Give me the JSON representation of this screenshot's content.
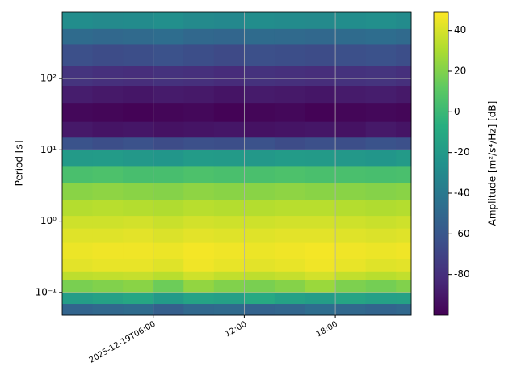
{
  "chart_data": {
    "type": "heatmap",
    "ylabel": "Period [s]",
    "colorbar_label": "Amplitude [m²/s⁴/Hz] [dB]",
    "colormap": "viridis",
    "grid": true,
    "yscale": "log",
    "xlim": [
      "2025-12-19T00:00",
      "2025-12-19T23:00"
    ],
    "xticks": [
      "2025-12-19T06:00",
      {
        "value": "2025-12-19T12:00",
        "label": "12:00"
      },
      {
        "value": "2025-12-19T18:00",
        "label": "18:00"
      }
    ],
    "ylim": [
      0.048,
      850
    ],
    "yticks": [
      {
        "value": 0.1,
        "label": "10⁻¹"
      },
      {
        "value": 1,
        "label": "10⁰"
      },
      {
        "value": 10,
        "label": "10¹"
      },
      {
        "value": 100,
        "label": "10²"
      }
    ],
    "clim": [
      -100,
      49
    ],
    "cticks": [
      -80,
      -60,
      -40,
      -20,
      0,
      20,
      40
    ],
    "x_edges": [
      "2025-12-19T00:00",
      "2025-12-19T02:00",
      "2025-12-19T04:00",
      "2025-12-19T06:00",
      "2025-12-19T08:00",
      "2025-12-19T10:00",
      "2025-12-19T12:00",
      "2025-12-19T14:00",
      "2025-12-19T16:00",
      "2025-12-19T18:00",
      "2025-12-19T20:00",
      "2025-12-19T22:00",
      "2025-12-19T23:00"
    ],
    "y_edges": [
      0.048,
      0.07,
      0.1,
      0.15,
      0.2,
      0.3,
      0.5,
      0.8,
      1.2,
      2,
      3.5,
      6,
      10,
      15,
      25,
      45,
      80,
      150,
      300,
      500,
      850
    ],
    "z": [
      [
        -52,
        -50,
        -48,
        -55,
        -50,
        -49,
        -53,
        -51,
        -47,
        -50,
        -52,
        -50
      ],
      [
        -18,
        -15,
        -12,
        -20,
        -14,
        -16,
        -10,
        -15,
        -18,
        -13,
        -16,
        -15
      ],
      [
        18,
        20,
        22,
        15,
        24,
        20,
        18,
        21,
        26,
        19,
        17,
        20
      ],
      [
        34,
        35,
        36,
        33,
        38,
        35,
        34,
        36,
        39,
        35,
        33,
        35
      ],
      [
        43,
        44,
        44,
        42,
        46,
        44,
        43,
        44,
        46,
        44,
        42,
        43
      ],
      [
        45,
        46,
        46,
        45,
        47,
        46,
        45,
        46,
        47,
        46,
        45,
        46
      ],
      [
        42,
        42,
        43,
        41,
        43,
        42,
        42,
        43,
        43,
        42,
        41,
        42
      ],
      [
        38,
        38,
        39,
        37,
        39,
        38,
        38,
        39,
        39,
        38,
        37,
        38
      ],
      [
        32,
        33,
        32,
        31,
        33,
        32,
        32,
        33,
        33,
        32,
        31,
        32
      ],
      [
        22,
        23,
        22,
        21,
        23,
        22,
        22,
        23,
        22,
        22,
        21,
        22
      ],
      [
        5,
        6,
        4,
        4,
        6,
        5,
        5,
        6,
        5,
        5,
        4,
        5
      ],
      [
        -20,
        -19,
        -21,
        -22,
        -19,
        -20,
        -21,
        -19,
        -20,
        -21,
        -22,
        -20
      ],
      [
        -62,
        -65,
        -63,
        -66,
        -64,
        -65,
        -63,
        -66,
        -64,
        -65,
        -62,
        -64
      ],
      [
        -90,
        -92,
        -91,
        -93,
        -92,
        -91,
        -93,
        -92,
        -91,
        -93,
        -90,
        -92
      ],
      [
        -97,
        -98,
        -99,
        -98,
        -97,
        -99,
        -98,
        -97,
        -99,
        -98,
        -97,
        -98
      ],
      [
        -88,
        -90,
        -91,
        -89,
        -90,
        -92,
        -89,
        -90,
        -91,
        -89,
        -88,
        -90
      ],
      [
        -78,
        -80,
        -81,
        -79,
        -80,
        -82,
        -79,
        -80,
        -81,
        -79,
        -78,
        -80
      ],
      [
        -64,
        -66,
        -65,
        -63,
        -65,
        -67,
        -64,
        -65,
        -66,
        -64,
        -63,
        -65
      ],
      [
        -48,
        -50,
        -49,
        -47,
        -50,
        -51,
        -48,
        -49,
        -50,
        -48,
        -47,
        -49
      ],
      [
        -28,
        -30,
        -29,
        -27,
        -30,
        -31,
        -28,
        -29,
        -30,
        -28,
        -27,
        -29
      ]
    ]
  }
}
